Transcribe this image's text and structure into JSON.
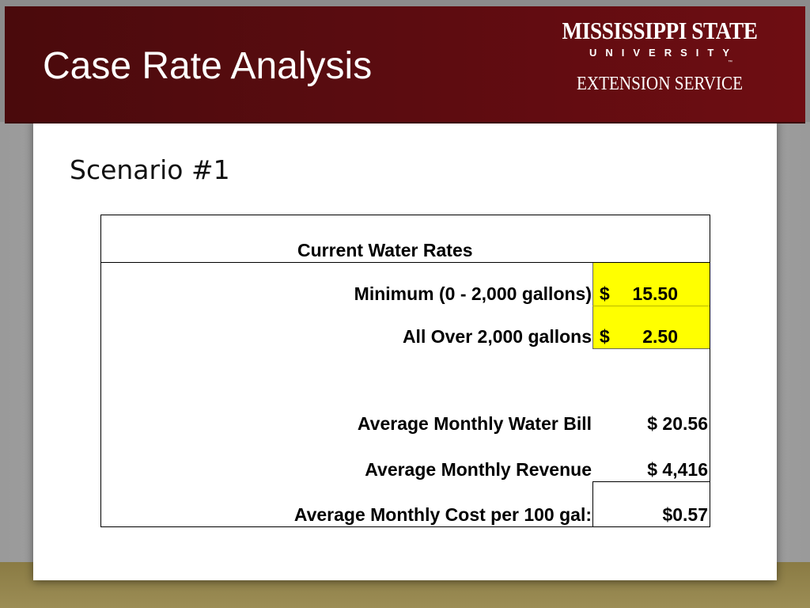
{
  "header": {
    "title": "Case Rate Analysis",
    "logo": {
      "name": "MISSISSIPPI STATE",
      "university": "UNIVERSITY",
      "trademark": "™",
      "division": "EXTENSION SERVICE"
    }
  },
  "subtitle": "Scenario #1",
  "table": {
    "heading": "Current Water Rates",
    "rates": [
      {
        "label": "Minimum (0 - 2,000 gallons)",
        "currency": "$",
        "amount": "15.50"
      },
      {
        "label": "All Over 2,000 gallons",
        "currency": "$",
        "amount": "2.50"
      }
    ],
    "summary": [
      {
        "label": "Average Monthly Water Bill",
        "value": "$ 20.56"
      },
      {
        "label": "Average Monthly Revenue",
        "value": "$ 4,416"
      },
      {
        "label": "Average Monthly Cost per 100 gal:",
        "value": "$0.57"
      }
    ]
  },
  "colors": {
    "header_band": "#5a0c10",
    "highlight": "#ffff00",
    "footer_band": "#8a7b44"
  }
}
